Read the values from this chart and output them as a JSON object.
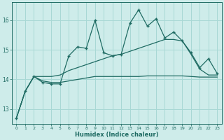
{
  "xlabel": "Humidex (Indice chaleur)",
  "ylabel": "",
  "background_color": "#ceecea",
  "grid_color": "#a8d8d5",
  "line_color": "#1f6b63",
  "xlim": [
    -0.5,
    23.5
  ],
  "ylim": [
    12.5,
    16.6
  ],
  "yticks": [
    13,
    14,
    15,
    16
  ],
  "xticks": [
    0,
    1,
    2,
    3,
    4,
    5,
    6,
    7,
    8,
    9,
    10,
    11,
    12,
    13,
    14,
    15,
    16,
    17,
    18,
    19,
    20,
    21,
    22,
    23
  ],
  "series1_x": [
    0,
    1,
    2,
    3,
    4,
    5,
    6,
    7,
    8,
    9,
    10,
    11,
    12,
    13,
    14,
    15,
    16,
    17,
    18,
    19,
    20,
    21,
    22,
    23
  ],
  "series1_y": [
    12.7,
    13.6,
    14.1,
    13.9,
    13.85,
    13.85,
    14.8,
    15.1,
    15.05,
    16.0,
    14.9,
    14.8,
    14.85,
    15.9,
    16.35,
    15.8,
    16.05,
    15.4,
    15.6,
    15.3,
    14.9,
    14.4,
    14.7,
    14.2
  ],
  "series2_x": [
    0,
    1,
    2,
    3,
    4,
    5,
    6,
    7,
    8,
    9,
    10,
    11,
    12,
    13,
    14,
    15,
    16,
    17,
    18,
    19,
    20,
    21,
    22,
    23
  ],
  "series2_y": [
    12.7,
    13.6,
    14.1,
    14.1,
    14.1,
    14.15,
    14.3,
    14.4,
    14.5,
    14.6,
    14.7,
    14.8,
    14.85,
    14.95,
    15.05,
    15.15,
    15.25,
    15.35,
    15.35,
    15.3,
    14.85,
    14.35,
    14.15,
    14.15
  ],
  "series3_x": [
    0,
    1,
    2,
    3,
    4,
    5,
    6,
    7,
    8,
    9,
    10,
    11,
    12,
    13,
    14,
    15,
    16,
    17,
    18,
    19,
    20,
    21,
    22,
    23
  ],
  "series3_y": [
    12.7,
    13.6,
    14.1,
    13.95,
    13.9,
    13.9,
    13.95,
    14.0,
    14.05,
    14.1,
    14.1,
    14.1,
    14.1,
    14.1,
    14.1,
    14.12,
    14.12,
    14.12,
    14.12,
    14.12,
    14.1,
    14.08,
    14.08,
    14.08
  ]
}
